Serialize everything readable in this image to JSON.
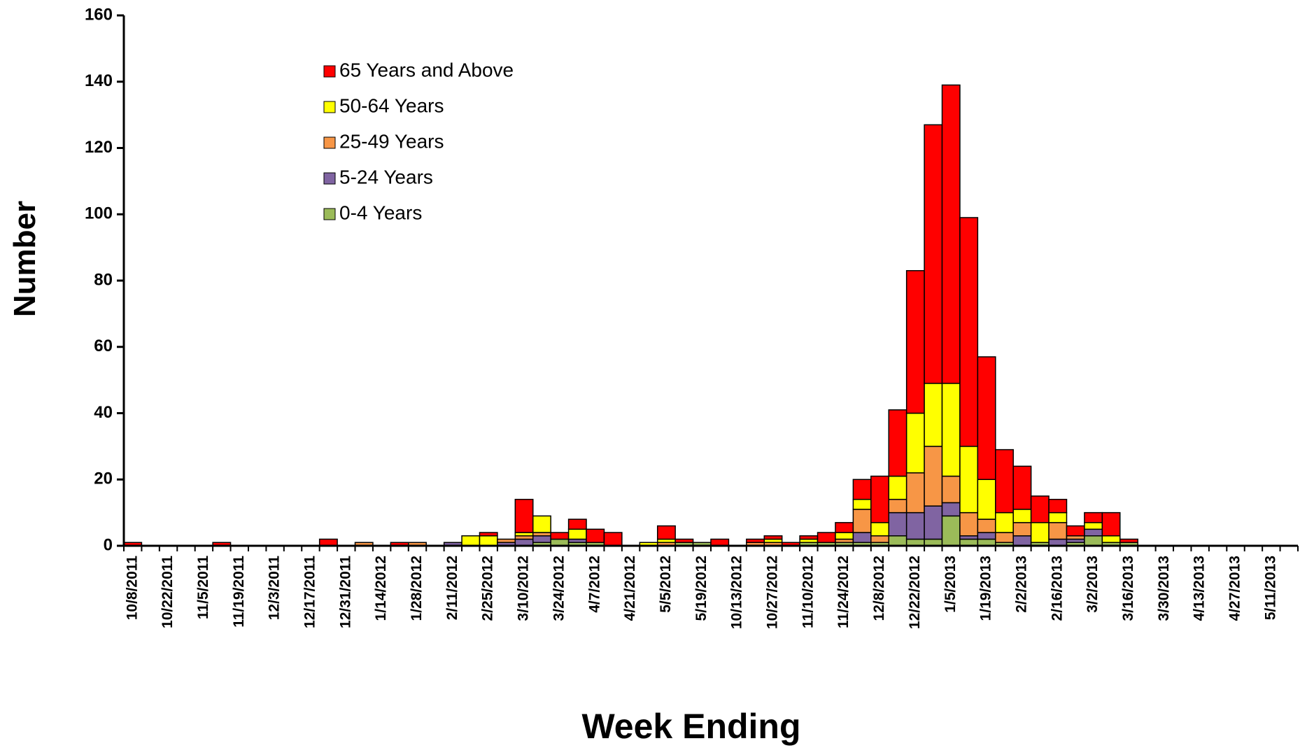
{
  "chart_data": {
    "type": "stacked_bar",
    "x_label": "Week Ending",
    "y_label": "Number",
    "categories": [
      "10/8/2011",
      null,
      "10/22/2011",
      null,
      "11/5/2011",
      null,
      "11/19/2011",
      null,
      "12/3/2011",
      null,
      "12/17/2011",
      null,
      "12/31/2011",
      null,
      "1/14/2012",
      null,
      "1/28/2012",
      null,
      "2/11/2012",
      null,
      "2/25/2012",
      null,
      "3/10/2012",
      null,
      "3/24/2012",
      null,
      "4/7/2012",
      null,
      "4/21/2012",
      null,
      "5/5/2012",
      null,
      "5/19/2012",
      null,
      "10/13/2012",
      null,
      "10/27/2012",
      null,
      "11/10/2012",
      null,
      "11/24/2012",
      null,
      "12/8/2012",
      null,
      "12/22/2012",
      null,
      "1/5/2013",
      null,
      "1/19/2013",
      null,
      "2/2/2013",
      null,
      "2/16/2013",
      null,
      "3/2/2013",
      null,
      "3/16/2013",
      null,
      "3/30/2013",
      null,
      "4/13/2013",
      null,
      "4/27/2013",
      null,
      "5/11/2013",
      null
    ],
    "series": [
      {
        "name": "0-4 Years",
        "color": "#9bbb59",
        "values": [
          0,
          0,
          0,
          0,
          0,
          0,
          0,
          0,
          0,
          0,
          0,
          0,
          0,
          0,
          0,
          0,
          0,
          0,
          0,
          0,
          0,
          0,
          0,
          1,
          2,
          1,
          1,
          0,
          0,
          0,
          0,
          1,
          1,
          0,
          0,
          0,
          0,
          0,
          1,
          1,
          1,
          1,
          1,
          3,
          2,
          2,
          9,
          2,
          2,
          1,
          0,
          1,
          0,
          1,
          3,
          1,
          1,
          0,
          0,
          0,
          0,
          0,
          0,
          0,
          0,
          0
        ]
      },
      {
        "name": "5-24 Years",
        "color": "#8064a2",
        "values": [
          0,
          0,
          0,
          0,
          0,
          0,
          0,
          0,
          0,
          0,
          0,
          0,
          0,
          0,
          0,
          0,
          0,
          0,
          1,
          0,
          0,
          1,
          2,
          2,
          0,
          1,
          0,
          0,
          0,
          0,
          0,
          0,
          0,
          0,
          0,
          0,
          0,
          0,
          0,
          0,
          0,
          3,
          0,
          7,
          8,
          10,
          4,
          1,
          2,
          0,
          3,
          0,
          2,
          1,
          2,
          0,
          0,
          0,
          0,
          0,
          0,
          0,
          0,
          0,
          0,
          0
        ]
      },
      {
        "name": "25-49 Years",
        "color": "#f79646",
        "values": [
          0,
          0,
          0,
          0,
          0,
          0,
          0,
          0,
          0,
          0,
          0,
          0,
          0,
          1,
          0,
          0,
          1,
          0,
          0,
          0,
          0,
          1,
          1,
          1,
          0,
          0,
          0,
          0,
          0,
          0,
          1,
          0,
          0,
          0,
          0,
          1,
          1,
          0,
          0,
          0,
          1,
          7,
          2,
          4,
          12,
          18,
          8,
          7,
          4,
          3,
          4,
          0,
          5,
          1,
          0,
          0,
          0,
          0,
          0,
          0,
          0,
          0,
          0,
          0,
          0,
          0
        ]
      },
      {
        "name": "50-64 Years",
        "color": "#ffff00",
        "values": [
          0,
          0,
          0,
          0,
          0,
          0,
          0,
          0,
          0,
          0,
          0,
          0,
          0,
          0,
          0,
          0,
          0,
          0,
          0,
          3,
          3,
          0,
          1,
          5,
          0,
          3,
          0,
          0,
          0,
          1,
          1,
          0,
          0,
          0,
          0,
          0,
          1,
          0,
          1,
          0,
          2,
          3,
          4,
          7,
          18,
          19,
          28,
          20,
          12,
          6,
          4,
          6,
          3,
          0,
          2,
          2,
          0,
          0,
          0,
          0,
          0,
          0,
          0,
          0,
          0,
          0
        ]
      },
      {
        "name": "65 Years and Above",
        "color": "#ff0000",
        "values": [
          1,
          0,
          0,
          0,
          0,
          1,
          0,
          0,
          0,
          0,
          0,
          2,
          0,
          0,
          0,
          1,
          0,
          0,
          0,
          0,
          1,
          0,
          10,
          0,
          2,
          3,
          4,
          4,
          0,
          0,
          4,
          1,
          0,
          2,
          0,
          1,
          1,
          1,
          1,
          3,
          3,
          6,
          14,
          20,
          43,
          78,
          90,
          69,
          37,
          19,
          13,
          8,
          4,
          3,
          3,
          7,
          1,
          0,
          0,
          0,
          0,
          0,
          0,
          0,
          0,
          0
        ]
      }
    ],
    "ylim": [
      0,
      160
    ],
    "yticks": [
      0,
      20,
      40,
      60,
      80,
      100,
      120,
      140,
      160
    ]
  }
}
